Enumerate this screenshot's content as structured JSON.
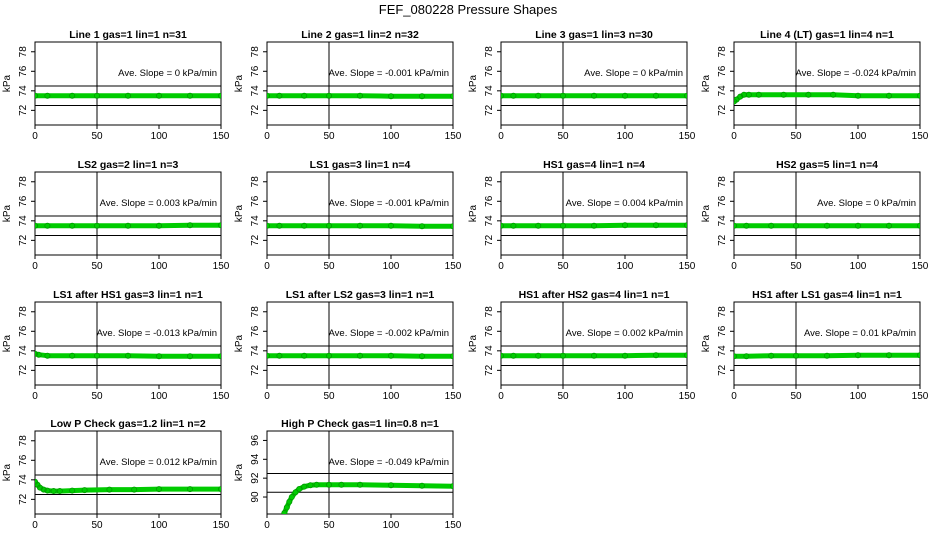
{
  "figure": {
    "title": "FEF_080228  Pressure Shapes"
  },
  "series_color": "#00cc00",
  "chart_data": [
    {
      "type": "line",
      "title": "Line 1 gas=1 lin=1 n=31",
      "ylabel": "kPa",
      "xlim": [
        0,
        150
      ],
      "ylim": [
        70.5,
        79
      ],
      "xticks": [
        0,
        50,
        100,
        150
      ],
      "yticks": [
        72,
        74,
        76,
        78
      ],
      "hlines": [
        72.5,
        74.5
      ],
      "vline": 50,
      "annotation": "Ave. Slope =  0  kPa/min",
      "x": [
        0,
        10,
        30,
        50,
        75,
        100,
        125,
        150
      ],
      "y": [
        73.5,
        73.5,
        73.5,
        73.5,
        73.5,
        73.5,
        73.5,
        73.5
      ]
    },
    {
      "type": "line",
      "title": "Line 2 gas=1 lin=2 n=32",
      "ylabel": "kPa",
      "xlim": [
        0,
        150
      ],
      "ylim": [
        70.5,
        79
      ],
      "xticks": [
        0,
        50,
        100,
        150
      ],
      "yticks": [
        72,
        74,
        76,
        78
      ],
      "hlines": [
        72.5,
        74.5
      ],
      "vline": 50,
      "annotation": "Ave. Slope =  -0.001  kPa/min",
      "x": [
        0,
        10,
        30,
        50,
        75,
        100,
        125,
        150
      ],
      "y": [
        73.5,
        73.5,
        73.5,
        73.5,
        73.5,
        73.45,
        73.45,
        73.45
      ]
    },
    {
      "type": "line",
      "title": "Line 3 gas=1 lin=3 n=30",
      "ylabel": "kPa",
      "xlim": [
        0,
        150
      ],
      "ylim": [
        70.5,
        79
      ],
      "xticks": [
        0,
        50,
        100,
        150
      ],
      "yticks": [
        72,
        74,
        76,
        78
      ],
      "hlines": [
        72.5,
        74.5
      ],
      "vline": 50,
      "annotation": "Ave. Slope =  0  kPa/min",
      "x": [
        0,
        10,
        30,
        50,
        75,
        100,
        125,
        150
      ],
      "y": [
        73.5,
        73.5,
        73.5,
        73.5,
        73.5,
        73.5,
        73.5,
        73.5
      ]
    },
    {
      "type": "line",
      "title": "Line 4 (LT) gas=1 lin=4 n=1",
      "ylabel": "kPa",
      "xlim": [
        0,
        150
      ],
      "ylim": [
        70.5,
        79
      ],
      "xticks": [
        0,
        50,
        100,
        150
      ],
      "yticks": [
        72,
        74,
        76,
        78
      ],
      "hlines": [
        72.5,
        74.5
      ],
      "vline": 50,
      "annotation": "Ave. Slope =  -0.024  kPa/min",
      "x": [
        0,
        2,
        5,
        8,
        12,
        20,
        40,
        60,
        80,
        100,
        125,
        150
      ],
      "y": [
        72.9,
        73.1,
        73.4,
        73.6,
        73.6,
        73.6,
        73.6,
        73.6,
        73.6,
        73.5,
        73.5,
        73.5
      ]
    },
    {
      "type": "line",
      "title": "LS2 gas=2 lin=1 n=3",
      "ylabel": "kPa",
      "xlim": [
        0,
        150
      ],
      "ylim": [
        70.5,
        79
      ],
      "xticks": [
        0,
        50,
        100,
        150
      ],
      "yticks": [
        72,
        74,
        76,
        78
      ],
      "hlines": [
        72.5,
        74.5
      ],
      "vline": 50,
      "annotation": "Ave. Slope =  0.003  kPa/min",
      "x": [
        0,
        10,
        30,
        50,
        75,
        100,
        125,
        150
      ],
      "y": [
        73.5,
        73.5,
        73.5,
        73.5,
        73.5,
        73.5,
        73.55,
        73.55
      ]
    },
    {
      "type": "line",
      "title": "LS1 gas=3 lin=1 n=4",
      "ylabel": "kPa",
      "xlim": [
        0,
        150
      ],
      "ylim": [
        70.5,
        79
      ],
      "xticks": [
        0,
        50,
        100,
        150
      ],
      "yticks": [
        72,
        74,
        76,
        78
      ],
      "hlines": [
        72.5,
        74.5
      ],
      "vline": 50,
      "annotation": "Ave. Slope =  -0.001  kPa/min",
      "x": [
        0,
        10,
        30,
        50,
        75,
        100,
        125,
        150
      ],
      "y": [
        73.5,
        73.5,
        73.5,
        73.5,
        73.5,
        73.5,
        73.45,
        73.45
      ]
    },
    {
      "type": "line",
      "title": "HS1 gas=4 lin=1 n=4",
      "ylabel": "kPa",
      "xlim": [
        0,
        150
      ],
      "ylim": [
        70.5,
        79
      ],
      "xticks": [
        0,
        50,
        100,
        150
      ],
      "yticks": [
        72,
        74,
        76,
        78
      ],
      "hlines": [
        72.5,
        74.5
      ],
      "vline": 50,
      "annotation": "Ave. Slope =  0.004  kPa/min",
      "x": [
        0,
        10,
        30,
        50,
        75,
        100,
        125,
        150
      ],
      "y": [
        73.5,
        73.5,
        73.5,
        73.5,
        73.5,
        73.55,
        73.55,
        73.55
      ]
    },
    {
      "type": "line",
      "title": "HS2 gas=5 lin=1 n=4",
      "ylabel": "kPa",
      "xlim": [
        0,
        150
      ],
      "ylim": [
        70.5,
        79
      ],
      "xticks": [
        0,
        50,
        100,
        150
      ],
      "yticks": [
        72,
        74,
        76,
        78
      ],
      "hlines": [
        72.5,
        74.5
      ],
      "vline": 50,
      "annotation": "Ave. Slope =  0  kPa/min",
      "x": [
        0,
        10,
        30,
        50,
        75,
        100,
        125,
        150
      ],
      "y": [
        73.5,
        73.5,
        73.5,
        73.5,
        73.5,
        73.5,
        73.5,
        73.5
      ]
    },
    {
      "type": "line",
      "title": "LS1 after HS1 gas=3 lin=1 n=1",
      "ylabel": "kPa",
      "xlim": [
        0,
        150
      ],
      "ylim": [
        70.5,
        79
      ],
      "xticks": [
        0,
        50,
        100,
        150
      ],
      "yticks": [
        72,
        74,
        76,
        78
      ],
      "hlines": [
        72.5,
        74.5
      ],
      "vline": 50,
      "annotation": "Ave. Slope =  -0.013  kPa/min",
      "x": [
        0,
        3,
        10,
        30,
        50,
        75,
        100,
        125,
        150
      ],
      "y": [
        73.7,
        73.6,
        73.5,
        73.5,
        73.5,
        73.5,
        73.45,
        73.45,
        73.45
      ]
    },
    {
      "type": "line",
      "title": "LS1 after LS2 gas=3 lin=1 n=1",
      "ylabel": "kPa",
      "xlim": [
        0,
        150
      ],
      "ylim": [
        70.5,
        79
      ],
      "xticks": [
        0,
        50,
        100,
        150
      ],
      "yticks": [
        72,
        74,
        76,
        78
      ],
      "hlines": [
        72.5,
        74.5
      ],
      "vline": 50,
      "annotation": "Ave. Slope =  -0.002  kPa/min",
      "x": [
        0,
        10,
        30,
        50,
        75,
        100,
        125,
        150
      ],
      "y": [
        73.5,
        73.5,
        73.5,
        73.5,
        73.5,
        73.5,
        73.45,
        73.45
      ]
    },
    {
      "type": "line",
      "title": "HS1 after HS2 gas=4 lin=1 n=1",
      "ylabel": "kPa",
      "xlim": [
        0,
        150
      ],
      "ylim": [
        70.5,
        79
      ],
      "xticks": [
        0,
        50,
        100,
        150
      ],
      "yticks": [
        72,
        74,
        76,
        78
      ],
      "hlines": [
        72.5,
        74.5
      ],
      "vline": 50,
      "annotation": "Ave. Slope =  0.002  kPa/min",
      "x": [
        0,
        10,
        30,
        50,
        75,
        100,
        125,
        150
      ],
      "y": [
        73.5,
        73.5,
        73.5,
        73.5,
        73.5,
        73.5,
        73.55,
        73.55
      ]
    },
    {
      "type": "line",
      "title": "HS1 after LS1 gas=4 lin=1 n=1",
      "ylabel": "kPa",
      "xlim": [
        0,
        150
      ],
      "ylim": [
        70.5,
        79
      ],
      "xticks": [
        0,
        50,
        100,
        150
      ],
      "yticks": [
        72,
        74,
        76,
        78
      ],
      "hlines": [
        72.5,
        74.5
      ],
      "vline": 50,
      "annotation": "Ave. Slope =  0.01  kPa/min",
      "x": [
        0,
        10,
        30,
        50,
        75,
        100,
        125,
        150
      ],
      "y": [
        73.45,
        73.45,
        73.5,
        73.5,
        73.5,
        73.55,
        73.55,
        73.55
      ]
    },
    {
      "type": "line",
      "title": "Low P Check gas=1.2 lin=1 n=2",
      "ylabel": "kPa",
      "xlim": [
        0,
        150
      ],
      "ylim": [
        70.5,
        79
      ],
      "xticks": [
        0,
        50,
        100,
        150
      ],
      "yticks": [
        72,
        74,
        76,
        78
      ],
      "hlines": [
        72.5,
        74.5
      ],
      "vline": 50,
      "annotation": "Ave. Slope =  0.012  kPa/min",
      "x": [
        0,
        2,
        4,
        7,
        10,
        15,
        20,
        30,
        40,
        60,
        80,
        100,
        125,
        150
      ],
      "y": [
        73.8,
        73.5,
        73.2,
        73.0,
        72.9,
        72.85,
        72.85,
        72.9,
        72.95,
        73.0,
        73.0,
        73.05,
        73.05,
        73.05
      ]
    },
    {
      "type": "line",
      "title": "High P Check gas=1 lin=0.8 n=1",
      "ylabel": "kPa",
      "xlim": [
        0,
        150
      ],
      "ylim": [
        88.2,
        97
      ],
      "xticks": [
        0,
        50,
        100,
        150
      ],
      "yticks": [
        90,
        92,
        94,
        96
      ],
      "hlines": [
        90.5,
        92.5
      ],
      "vline": 50,
      "annotation": "Ave. Slope =  -0.049  kPa/min",
      "x": [
        14,
        16,
        18,
        20,
        23,
        26,
        30,
        35,
        40,
        50,
        60,
        75,
        100,
        125,
        150
      ],
      "y": [
        88.3,
        88.9,
        89.5,
        90.0,
        90.5,
        90.85,
        91.1,
        91.25,
        91.3,
        91.3,
        91.3,
        91.3,
        91.25,
        91.2,
        91.15
      ]
    }
  ]
}
